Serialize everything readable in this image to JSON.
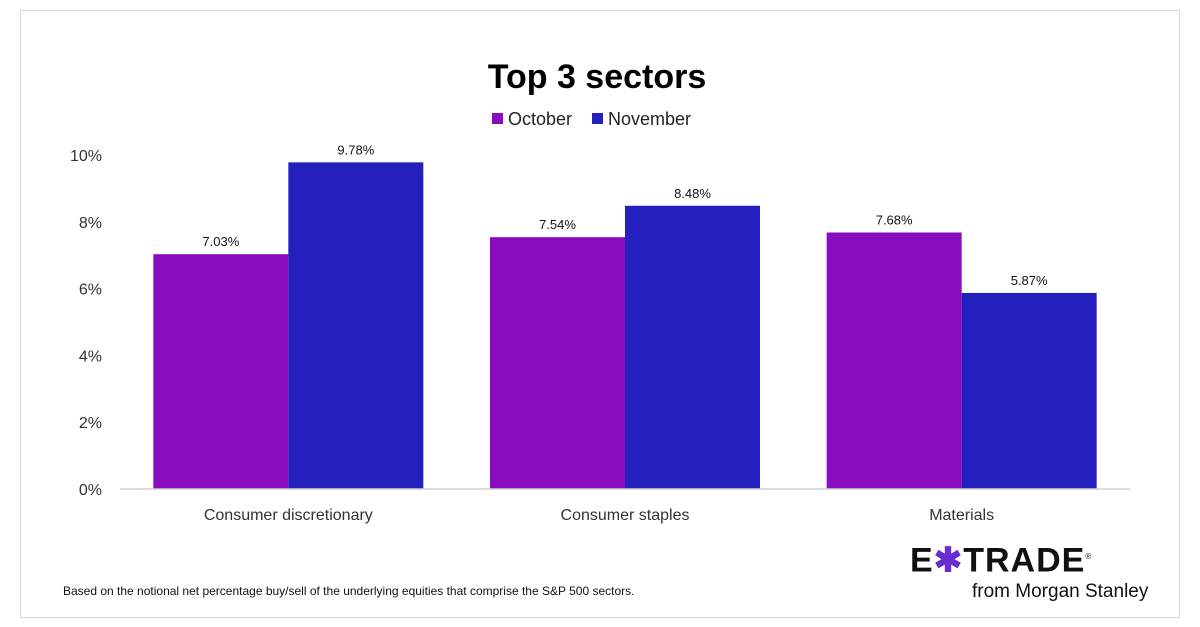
{
  "chart_data": {
    "type": "bar",
    "title": "Top 3 sectors",
    "categories": [
      "Consumer discretionary",
      "Consumer staples",
      "Materials"
    ],
    "series": [
      {
        "name": "October",
        "values": [
          7.03,
          7.54,
          7.68
        ],
        "labels": [
          "7.03%",
          "7.54%",
          "7.68%"
        ],
        "color": "#8a0cbf"
      },
      {
        "name": "November",
        "values": [
          9.78,
          8.48,
          5.87
        ],
        "labels": [
          "9.78%",
          "8.48%",
          "5.87%"
        ],
        "color": "#2320be"
      }
    ],
    "ylim": [
      0,
      10
    ],
    "yticks": [
      "0%",
      "2%",
      "4%",
      "6%",
      "8%",
      "10%"
    ],
    "grid": false,
    "legend": "top-center"
  },
  "footnote": "Based on the notional net percentage buy/sell of the underlying equities that comprise the S&P 500 sectors.",
  "logo": {
    "main_left": "E",
    "main_x": "✱",
    "main_right": "TRADE",
    "registered": "®",
    "sub": "from Morgan Stanley"
  }
}
